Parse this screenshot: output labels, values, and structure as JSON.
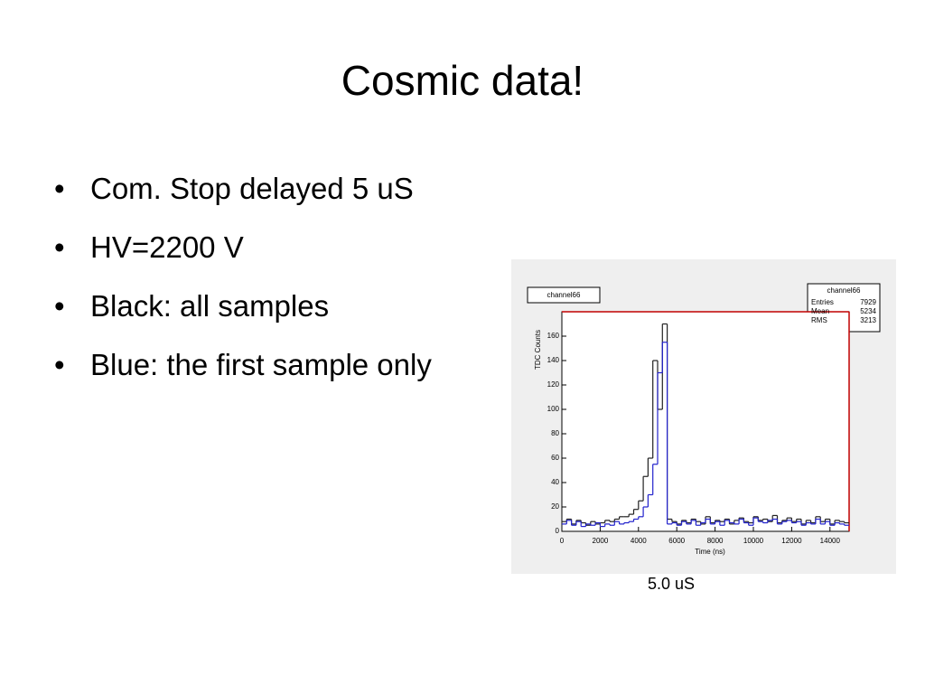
{
  "title": "Cosmic data!",
  "bullets": [
    "Com. Stop delayed 5 uS",
    "HV=2200 V",
    "Black: all samples",
    "Blue: the first sample only"
  ],
  "caption": "5.0 uS",
  "chart_data": {
    "type": "histogram",
    "title": "channel66",
    "stats": {
      "title": "channel66",
      "labels": [
        "Entries",
        "Mean",
        "RMS"
      ],
      "values": [
        7929,
        5234,
        3213
      ]
    },
    "x_label": "Time (ns)",
    "y_label": "TDC Counts",
    "bins": [
      0,
      250,
      500,
      750,
      1000,
      1250,
      1500,
      1750,
      2000,
      2250,
      2500,
      2750,
      3000,
      3250,
      3500,
      3750,
      4000,
      4250,
      4500,
      4750,
      5000,
      5250,
      5500,
      5750,
      6000,
      6250,
      6500,
      6750,
      7000,
      7250,
      7500,
      7750,
      8000,
      8250,
      8500,
      8750,
      9000,
      9250,
      9500,
      9750,
      10000,
      10250,
      10500,
      10750,
      11000,
      11250,
      11500,
      11750,
      12000,
      12250,
      12500,
      12750,
      13000,
      13250,
      13500,
      13750,
      14000,
      14250,
      14500,
      14750,
      15000
    ],
    "series": [
      {
        "color": "#222222",
        "values": [
          8,
          10,
          6,
          9,
          7,
          5,
          8,
          6,
          7,
          9,
          8,
          10,
          12,
          12,
          14,
          18,
          25,
          45,
          60,
          140,
          100,
          170,
          10,
          8,
          6,
          9,
          7,
          10,
          8,
          6,
          12,
          7,
          9,
          8,
          10,
          6,
          9,
          11,
          8,
          7,
          12,
          9,
          10,
          8,
          13,
          7,
          9,
          11,
          8,
          10,
          6,
          9,
          7,
          12,
          8,
          10,
          6,
          9,
          8,
          7
        ]
      },
      {
        "color": "#2222cc",
        "values": [
          6,
          9,
          5,
          8,
          4,
          6,
          5,
          7,
          4,
          6,
          5,
          8,
          6,
          7,
          8,
          10,
          12,
          20,
          30,
          55,
          130,
          155,
          6,
          7,
          5,
          8,
          6,
          9,
          5,
          7,
          10,
          6,
          8,
          5,
          9,
          7,
          6,
          10,
          7,
          5,
          11,
          8,
          7,
          9,
          10,
          6,
          8,
          9,
          7,
          8,
          5,
          7,
          6,
          10,
          6,
          8,
          5,
          7,
          6,
          5
        ]
      }
    ],
    "xlim": [
      0,
      15000
    ],
    "ylim": [
      0,
      180
    ],
    "xticks": [
      0,
      2000,
      4000,
      6000,
      8000,
      10000,
      12000,
      14000
    ],
    "yticks": [
      0,
      20,
      40,
      60,
      80,
      100,
      120,
      140,
      160
    ]
  }
}
